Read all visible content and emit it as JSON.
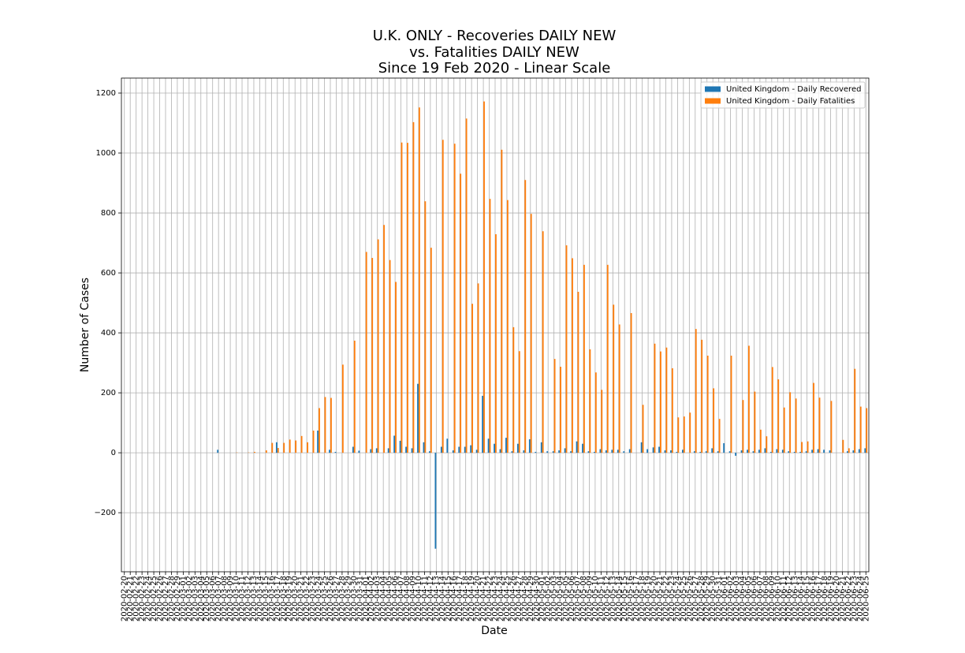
{
  "chart_data": {
    "type": "bar",
    "title": [
      "U.K. ONLY - Recoveries DAILY NEW",
      "vs. Fatalities DAILY NEW",
      "Since 19 Feb 2020 - Linear Scale"
    ],
    "xlabel": "Date",
    "ylabel": "Number of Cases",
    "categories": [
      "2020-02-20",
      "2020-02-21",
      "2020-02-22",
      "2020-02-23",
      "2020-02-24",
      "2020-02-25",
      "2020-02-26",
      "2020-02-27",
      "2020-02-28",
      "2020-02-29",
      "2020-03-01",
      "2020-03-02",
      "2020-03-03",
      "2020-03-04",
      "2020-03-05",
      "2020-03-06",
      "2020-03-07",
      "2020-03-08",
      "2020-03-09",
      "2020-03-10",
      "2020-03-11",
      "2020-03-12",
      "2020-03-13",
      "2020-03-14",
      "2020-03-15",
      "2020-03-16",
      "2020-03-17",
      "2020-03-18",
      "2020-03-19",
      "2020-03-20",
      "2020-03-21",
      "2020-03-22",
      "2020-03-23",
      "2020-03-24",
      "2020-03-25",
      "2020-03-26",
      "2020-03-27",
      "2020-03-28",
      "2020-03-29",
      "2020-03-30",
      "2020-03-31",
      "2020-04-01",
      "2020-04-02",
      "2020-04-03",
      "2020-04-04",
      "2020-04-05",
      "2020-04-06",
      "2020-04-07",
      "2020-04-08",
      "2020-04-09",
      "2020-04-10",
      "2020-04-11",
      "2020-04-12",
      "2020-04-13",
      "2020-04-14",
      "2020-04-15",
      "2020-04-16",
      "2020-04-17",
      "2020-04-18",
      "2020-04-19",
      "2020-04-20",
      "2020-04-21",
      "2020-04-22",
      "2020-04-23",
      "2020-04-24",
      "2020-04-25",
      "2020-04-26",
      "2020-04-27",
      "2020-04-28",
      "2020-04-29",
      "2020-04-30",
      "2020-05-01",
      "2020-05-02",
      "2020-05-03",
      "2020-05-04",
      "2020-05-05",
      "2020-05-06",
      "2020-05-07",
      "2020-05-08",
      "2020-05-09",
      "2020-05-10",
      "2020-05-11",
      "2020-05-12",
      "2020-05-13",
      "2020-05-14",
      "2020-05-15",
      "2020-05-16",
      "2020-05-17",
      "2020-05-18",
      "2020-05-19",
      "2020-05-20",
      "2020-05-21",
      "2020-05-22",
      "2020-05-23",
      "2020-05-24",
      "2020-05-25",
      "2020-05-26",
      "2020-05-27",
      "2020-05-28",
      "2020-05-29",
      "2020-05-30",
      "2020-05-31",
      "2020-06-01",
      "2020-06-02",
      "2020-06-03",
      "2020-06-04",
      "2020-06-05",
      "2020-06-06",
      "2020-06-07",
      "2020-06-08",
      "2020-06-09",
      "2020-06-10",
      "2020-06-11",
      "2020-06-12",
      "2020-06-13",
      "2020-06-14",
      "2020-06-15",
      "2020-06-16",
      "2020-06-17",
      "2020-06-18",
      "2020-06-19",
      "2020-06-20",
      "2020-06-21",
      "2020-06-22",
      "2020-06-23",
      "2020-06-24",
      "2020-06-25"
    ],
    "series": [
      {
        "name": "United Kingdom - Daily Recovered",
        "color": "#1f77b4",
        "values": [
          0,
          0,
          0,
          0,
          0,
          0,
          0,
          0,
          0,
          0,
          0,
          0,
          0,
          0,
          0,
          0,
          10,
          0,
          0,
          0,
          0,
          0,
          0,
          0,
          0,
          0,
          35,
          0,
          0,
          0,
          0,
          0,
          0,
          74,
          0,
          10,
          3,
          0,
          0,
          20,
          7,
          0,
          12,
          15,
          0,
          15,
          57,
          40,
          20,
          15,
          230,
          35,
          5,
          -320,
          20,
          47,
          8,
          20,
          20,
          25,
          10,
          190,
          47,
          30,
          12,
          50,
          5,
          30,
          8,
          45,
          3,
          35,
          5,
          5,
          8,
          15,
          5,
          38,
          30,
          5,
          3,
          12,
          8,
          10,
          10,
          5,
          12,
          0,
          35,
          12,
          18,
          20,
          8,
          8,
          3,
          10,
          0,
          5,
          3,
          5,
          15,
          5,
          32,
          5,
          -10,
          8,
          10,
          5,
          10,
          15,
          3,
          12,
          10,
          5,
          3,
          3,
          5,
          10,
          12,
          10,
          8,
          0,
          0,
          5,
          8,
          12,
          15
        ]
      },
      {
        "name": "United Kingdom - Daily Fatalities",
        "color": "#ff7f0e",
        "values": [
          0,
          0,
          0,
          0,
          0,
          0,
          0,
          0,
          0,
          0,
          0,
          0,
          0,
          0,
          0,
          0,
          0,
          0,
          0,
          1,
          0,
          1,
          3,
          0,
          8,
          33,
          16,
          33,
          44,
          41,
          56,
          35,
          74,
          149,
          186,
          183,
          0,
          294,
          0,
          374,
          0,
          670,
          650,
          712,
          760,
          643,
          570,
          1035,
          1034,
          1103,
          1152,
          839,
          684,
          0,
          1044,
          0,
          1031,
          931,
          1115,
          497,
          565,
          1172,
          847,
          729,
          1011,
          843,
          419,
          339,
          910,
          797,
          0,
          739,
          0,
          313,
          287,
          692,
          649,
          537,
          627,
          345,
          268,
          210,
          627,
          494,
          428,
          0,
          466,
          0,
          160,
          0,
          364,
          338,
          351,
          282,
          118,
          121,
          134,
          413,
          377,
          324,
          215,
          113,
          0,
          324,
          0,
          176,
          357,
          204,
          77,
          55,
          286,
          245,
          151,
          202,
          181,
          36,
          38,
          233,
          184,
          0,
          173,
          0,
          43,
          15,
          280,
          154,
          149
        ]
      }
    ],
    "ylim": [
      -397,
      1250
    ],
    "yticks": [
      {
        "value": -200,
        "label": "−200"
      },
      0,
      200,
      400,
      600,
      800,
      1000,
      1200
    ],
    "grid": true,
    "legend": "upper right"
  }
}
